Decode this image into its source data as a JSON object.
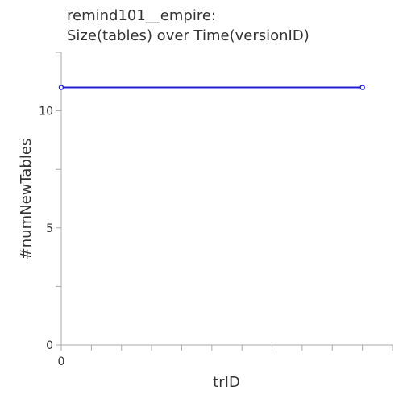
{
  "chart_data": {
    "type": "line",
    "title_lines": [
      "remind101__empire:",
      "Size(tables) over Time(versionID)"
    ],
    "xlabel": "trID",
    "ylabel": "#numNewTables",
    "x_tick_labels": [
      "0"
    ],
    "y_ticks": [
      0,
      5,
      10
    ],
    "y_minor_ticks": [
      2.5,
      7.5,
      12.5
    ],
    "ylim": [
      0,
      12.5
    ],
    "xlim": [
      0,
      11
    ],
    "x_minor_ticks": [
      1,
      2,
      3,
      4,
      5,
      6,
      7,
      8,
      9,
      10,
      11
    ],
    "grid": false,
    "series": [
      {
        "color": "#1f1fd6",
        "x": [
          0,
          10
        ],
        "y": [
          11,
          11
        ]
      }
    ]
  }
}
